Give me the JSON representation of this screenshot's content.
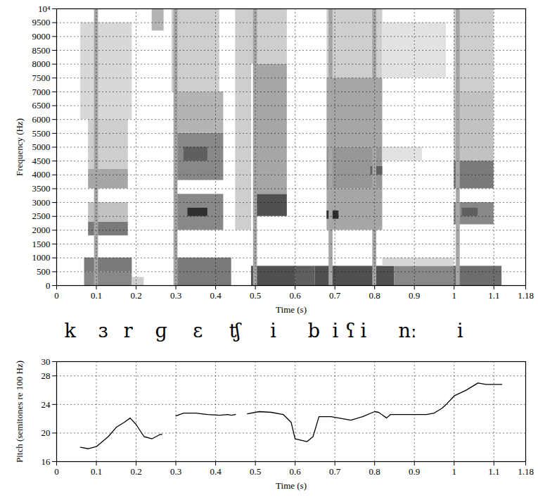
{
  "chart_data": [
    {
      "type": "heatmap",
      "xlabel": "Time (s)",
      "ylabel": "Frequency (Hz)",
      "xlim": [
        0,
        1.18
      ],
      "ylim": [
        0,
        10000
      ],
      "xticks": [
        0,
        0.1,
        0.2,
        0.3,
        0.4,
        0.5,
        0.6,
        0.7,
        0.8,
        0.9,
        1,
        1.1,
        1.18
      ],
      "yticks": [
        0,
        500,
        1000,
        1500,
        2000,
        2500,
        3000,
        3500,
        4000,
        4500,
        5000,
        5500,
        6000,
        6500,
        7000,
        7500,
        8000,
        8500,
        9000,
        9500,
        {
          "value": 10000,
          "label": "10⁴"
        }
      ],
      "grid": true,
      "cells": [
        {
          "t0": 0.07,
          "t1": 0.19,
          "f0": 0,
          "f1": 500,
          "level": 0.55
        },
        {
          "t0": 0.07,
          "t1": 0.19,
          "f0": 500,
          "f1": 1000,
          "level": 0.6
        },
        {
          "t0": 0.08,
          "t1": 0.18,
          "f0": 1800,
          "f1": 2300,
          "level": 0.6
        },
        {
          "t0": 0.08,
          "t1": 0.18,
          "f0": 2300,
          "f1": 3000,
          "level": 0.35
        },
        {
          "t0": 0.08,
          "t1": 0.18,
          "f0": 3500,
          "f1": 4200,
          "level": 0.45
        },
        {
          "t0": 0.08,
          "t1": 0.18,
          "f0": 4200,
          "f1": 6000,
          "level": 0.3
        },
        {
          "t0": 0.06,
          "t1": 0.19,
          "f0": 6000,
          "f1": 9500,
          "level": 0.25
        },
        {
          "t0": 0.095,
          "t1": 0.105,
          "f0": 0,
          "f1": 10000,
          "level": 0.45
        },
        {
          "t0": 0.19,
          "t1": 0.22,
          "f0": 0,
          "f1": 300,
          "level": 0.3
        },
        {
          "t0": 0.24,
          "t1": 0.27,
          "f0": 9200,
          "f1": 10000,
          "level": 0.4
        },
        {
          "t0": 0.3,
          "t1": 0.44,
          "f0": 0,
          "f1": 1000,
          "level": 0.6
        },
        {
          "t0": 0.3,
          "t1": 0.42,
          "f0": 2000,
          "f1": 3300,
          "level": 0.55
        },
        {
          "t0": 0.33,
          "t1": 0.38,
          "f0": 2500,
          "f1": 2800,
          "level": 0.85
        },
        {
          "t0": 0.3,
          "t1": 0.42,
          "f0": 3800,
          "f1": 5500,
          "level": 0.55
        },
        {
          "t0": 0.32,
          "t1": 0.38,
          "f0": 4500,
          "f1": 5000,
          "level": 0.7
        },
        {
          "t0": 0.3,
          "t1": 0.42,
          "f0": 5500,
          "f1": 7000,
          "level": 0.4
        },
        {
          "t0": 0.29,
          "t1": 0.41,
          "f0": 7000,
          "f1": 10000,
          "level": 0.3
        },
        {
          "t0": 0.295,
          "t1": 0.305,
          "f0": 0,
          "f1": 10000,
          "level": 0.45
        },
        {
          "t0": 0.45,
          "t1": 0.49,
          "f0": 2000,
          "f1": 10000,
          "level": 0.3
        },
        {
          "t0": 0.49,
          "t1": 0.6,
          "f0": 0,
          "f1": 700,
          "level": 0.75
        },
        {
          "t0": 0.5,
          "t1": 0.58,
          "f0": 2500,
          "f1": 3300,
          "level": 0.75
        },
        {
          "t0": 0.5,
          "t1": 0.58,
          "f0": 3300,
          "f1": 4500,
          "level": 0.45
        },
        {
          "t0": 0.5,
          "t1": 0.58,
          "f0": 4500,
          "f1": 8000,
          "level": 0.45
        },
        {
          "t0": 0.49,
          "t1": 0.58,
          "f0": 8000,
          "f1": 10000,
          "level": 0.3
        },
        {
          "t0": 0.495,
          "t1": 0.505,
          "f0": 0,
          "f1": 10000,
          "level": 0.45
        },
        {
          "t0": 0.6,
          "t1": 0.65,
          "f0": 0,
          "f1": 700,
          "level": 0.7
        },
        {
          "t0": 0.65,
          "t1": 0.85,
          "f0": 0,
          "f1": 700,
          "level": 0.75
        },
        {
          "t0": 0.68,
          "t1": 0.82,
          "f0": 2000,
          "f1": 3500,
          "level": 0.45
        },
        {
          "t0": 0.68,
          "t1": 0.71,
          "f0": 2400,
          "f1": 2700,
          "level": 0.85
        },
        {
          "t0": 0.68,
          "t1": 0.82,
          "f0": 3500,
          "f1": 5000,
          "level": 0.5
        },
        {
          "t0": 0.79,
          "t1": 0.82,
          "f0": 4000,
          "f1": 4300,
          "level": 0.7
        },
        {
          "t0": 0.68,
          "t1": 0.82,
          "f0": 5000,
          "f1": 7500,
          "level": 0.45
        },
        {
          "t0": 0.68,
          "t1": 0.82,
          "f0": 7500,
          "f1": 10000,
          "level": 0.3
        },
        {
          "t0": 0.685,
          "t1": 0.695,
          "f0": 0,
          "f1": 10000,
          "level": 0.45
        },
        {
          "t0": 0.795,
          "t1": 0.805,
          "f0": 0,
          "f1": 10000,
          "level": 0.45
        },
        {
          "t0": 0.85,
          "t1": 1.0,
          "f0": 0,
          "f1": 700,
          "level": 0.55
        },
        {
          "t0": 0.82,
          "t1": 1.0,
          "f0": 700,
          "f1": 1000,
          "level": 0.25
        },
        {
          "t0": 0.82,
          "t1": 0.92,
          "f0": 4500,
          "f1": 5000,
          "level": 0.2
        },
        {
          "t0": 0.82,
          "t1": 0.98,
          "f0": 7500,
          "f1": 9500,
          "level": 0.2
        },
        {
          "t0": 1.0,
          "t1": 1.12,
          "f0": 0,
          "f1": 700,
          "level": 0.65
        },
        {
          "t0": 1.0,
          "t1": 1.1,
          "f0": 2200,
          "f1": 3000,
          "level": 0.55
        },
        {
          "t0": 1.02,
          "t1": 1.06,
          "f0": 2500,
          "f1": 2800,
          "level": 0.7
        },
        {
          "t0": 1.0,
          "t1": 1.1,
          "f0": 3500,
          "f1": 4500,
          "level": 0.6
        },
        {
          "t0": 1.0,
          "t1": 1.1,
          "f0": 4500,
          "f1": 7000,
          "level": 0.35
        },
        {
          "t0": 1.0,
          "t1": 1.1,
          "f0": 7000,
          "f1": 10000,
          "level": 0.3
        },
        {
          "t0": 1.005,
          "t1": 1.015,
          "f0": 0,
          "f1": 10000,
          "level": 0.45
        }
      ],
      "annotations": [
        {
          "text": "k",
          "x": 0.035
        },
        {
          "text": "ɜ",
          "x": 0.118
        },
        {
          "text": "r",
          "x": 0.181
        },
        {
          "text": "ɡ",
          "x": 0.264
        },
        {
          "text": "ɛ",
          "x": 0.356
        },
        {
          "text": "ʧ",
          "x": 0.449
        },
        {
          "text": "i",
          "x": 0.546
        },
        {
          "text": "b",
          "x": 0.648
        },
        {
          "text": "i",
          "x": 0.702
        },
        {
          "text": "ʕ",
          "x": 0.74
        },
        {
          "text": "i",
          "x": 0.773
        },
        {
          "text": "nː",
          "x": 0.884
        },
        {
          "text": "i",
          "x": 1.016
        }
      ]
    },
    {
      "type": "line",
      "xlabel": "Time (s)",
      "ylabel": "Pitch (semitones re 100 Hz)",
      "xlim": [
        0,
        1.18
      ],
      "ylim": [
        16,
        30
      ],
      "xticks": [
        0,
        0.1,
        0.2,
        0.3,
        0.4,
        0.5,
        0.6,
        0.7,
        0.8,
        0.9,
        1,
        1.1,
        1.18
      ],
      "yticks": [
        16,
        20,
        24,
        28,
        30
      ],
      "grid": true,
      "color": "#000000",
      "x": [
        0.06,
        0.08,
        0.1,
        0.13,
        0.15,
        0.17,
        0.185,
        0.2,
        0.22,
        0.24,
        0.26,
        0.265,
        0.28,
        0.3,
        0.32,
        0.35,
        0.38,
        0.41,
        0.43,
        0.44,
        0.45,
        0.465,
        0.48,
        0.51,
        0.54,
        0.57,
        0.59,
        0.6,
        0.63,
        0.645,
        0.66,
        0.69,
        0.72,
        0.74,
        0.77,
        0.8,
        0.81,
        0.82,
        0.83,
        0.84,
        0.87,
        0.93,
        0.95,
        0.97,
        0.98,
        1.0,
        1.03,
        1.06,
        1.08,
        1.1,
        1.12
      ],
      "values": [
        18.0,
        17.8,
        18.1,
        19.5,
        20.8,
        21.5,
        22.1,
        21.2,
        19.5,
        19.2,
        19.8,
        19.8,
        null,
        22.4,
        22.8,
        22.8,
        22.6,
        22.5,
        22.6,
        22.5,
        22.6,
        null,
        22.7,
        23.0,
        22.9,
        22.6,
        21.5,
        19.2,
        18.8,
        19.5,
        22.3,
        22.3,
        22.0,
        21.8,
        22.3,
        23.0,
        22.9,
        22.5,
        22.1,
        22.6,
        22.6,
        22.6,
        22.8,
        23.5,
        24.0,
        25.2,
        26.0,
        27.0,
        26.8,
        26.8,
        26.8
      ]
    }
  ]
}
